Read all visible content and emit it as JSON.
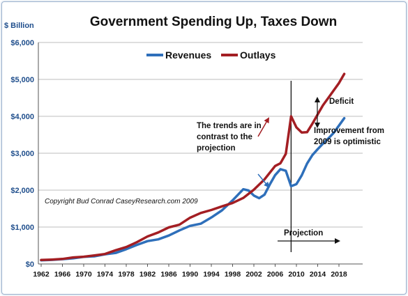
{
  "chart_data": {
    "type": "line",
    "title": "Government Spending Up, Taxes Down",
    "ylabel": "$ Billion",
    "xlabel": "",
    "xlim": [
      1962,
      2019
    ],
    "ylim": [
      0,
      6000
    ],
    "yticks": [
      0,
      1000,
      2000,
      3000,
      4000,
      5000,
      6000
    ],
    "ytick_labels": [
      "$0",
      "$1,000",
      "$2,000",
      "$3,000",
      "$4,000",
      "$5,000",
      "$6,000"
    ],
    "xticks": [
      1962,
      1966,
      1970,
      1974,
      1978,
      1982,
      1986,
      1990,
      1994,
      1998,
      2002,
      2006,
      2010,
      2014,
      2018
    ],
    "xtick_labels": [
      "1962",
      "1966",
      "1970",
      "1974",
      "1978",
      "1982",
      "1986",
      "1990",
      "1994",
      "1998",
      "2002",
      "2006",
      "2010",
      "2014",
      "2018"
    ],
    "grid": "horizontal",
    "legend_position": "top",
    "series": [
      {
        "name": "Revenues",
        "color": "#2e6fba",
        "x": [
          1962,
          1964,
          1966,
          1968,
          1970,
          1972,
          1974,
          1976,
          1978,
          1980,
          1982,
          1984,
          1986,
          1988,
          1990,
          1992,
          1994,
          1996,
          1998,
          2000,
          2001,
          2002,
          2003,
          2004,
          2005,
          2006,
          2007,
          2008,
          2009,
          2010,
          2011,
          2012,
          2013,
          2014,
          2015,
          2016,
          2017,
          2018,
          2019
        ],
        "y": [
          100,
          112,
          130,
          153,
          193,
          207,
          263,
          298,
          400,
          517,
          618,
          666,
          769,
          909,
          1032,
          1091,
          1258,
          1453,
          1722,
          2025,
          1991,
          1853,
          1782,
          1880,
          2154,
          2407,
          2568,
          2524,
          2105,
          2163,
          2400,
          2720,
          2950,
          3110,
          3260,
          3400,
          3550,
          3750,
          3950
        ]
      },
      {
        "name": "Outlays",
        "color": "#a31e23",
        "x": [
          1962,
          1964,
          1966,
          1968,
          1970,
          1972,
          1974,
          1976,
          1978,
          1980,
          1982,
          1984,
          1986,
          1988,
          1990,
          1992,
          1994,
          1996,
          1998,
          2000,
          2002,
          2004,
          2006,
          2007,
          2008,
          2009,
          2010,
          2011,
          2012,
          2013,
          2014,
          2015,
          2016,
          2017,
          2018,
          2019
        ],
        "y": [
          107,
          119,
          135,
          178,
          196,
          231,
          269,
          372,
          459,
          591,
          746,
          852,
          990,
          1064,
          1253,
          1382,
          1462,
          1561,
          1652,
          1789,
          2011,
          2293,
          2655,
          2729,
          2983,
          4000,
          3700,
          3560,
          3570,
          3800,
          4050,
          4300,
          4500,
          4700,
          4900,
          5150
        ]
      }
    ],
    "projection_start": 2009,
    "annotations": {
      "trends": [
        "The trends are in",
        "contrast to the",
        "projection"
      ],
      "deficit": "Deficit",
      "improvement": [
        "Improvement from",
        "2009 is optimistic"
      ],
      "projection": "Projection",
      "copyright": "Copyright Bud Conrad CaseyResearch.com  2009"
    }
  }
}
